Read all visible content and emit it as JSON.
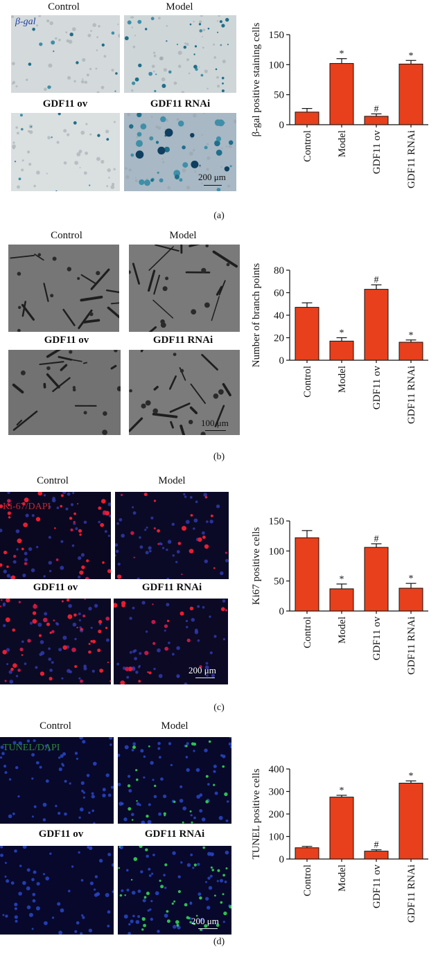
{
  "panels": [
    {
      "letter": "(a)",
      "image_labels": [
        "Control",
        "Model",
        "GDF11 ov",
        "GDF11 RNAi"
      ],
      "overlay": "β-gal",
      "scale": "200 μm"
    },
    {
      "letter": "(b)",
      "image_labels": [
        "Control",
        "Model",
        "GDF11 ov",
        "GDF11 RNAi"
      ],
      "overlay": "",
      "scale": "100 μm"
    },
    {
      "letter": "(c)",
      "image_labels": [
        "Control",
        "Model",
        "GDF11 ov",
        "GDF11 RNAi"
      ],
      "overlay": "Ki-67/DAPI",
      "scale": "200 μm"
    },
    {
      "letter": "(d)",
      "image_labels": [
        "Control",
        "Model",
        "GDF11 ov",
        "GDF11 RNAi"
      ],
      "overlay": "TUNEL/DAPI",
      "scale": "200 μm"
    }
  ],
  "colors": {
    "bar": "#e8401c",
    "axis": "#111111"
  },
  "chart_data": [
    {
      "type": "bar",
      "ylabel": "β-gal positive staining cells",
      "categories": [
        "Control",
        "Model",
        "GDF11 ov",
        "GDF11 RNAi"
      ],
      "values": [
        21,
        102,
        14,
        101
      ],
      "errors": [
        6,
        8,
        4,
        6
      ],
      "markers": [
        "",
        "*",
        "#",
        "*"
      ],
      "ylim": [
        0,
        150
      ],
      "yticks": [
        0,
        50,
        100,
        150
      ]
    },
    {
      "type": "bar",
      "ylabel": "Number of branch points",
      "categories": [
        "Control",
        "Model",
        "GDF11 ov",
        "GDF11 RNAi"
      ],
      "values": [
        47,
        17,
        63,
        16
      ],
      "errors": [
        4,
        3,
        4,
        2
      ],
      "markers": [
        "",
        "*",
        "#",
        "*"
      ],
      "ylim": [
        0,
        80
      ],
      "yticks": [
        0,
        20,
        40,
        60,
        80
      ]
    },
    {
      "type": "bar",
      "ylabel": "Ki67 positive cells",
      "categories": [
        "Control",
        "Model",
        "GDF11 ov",
        "GDF11 RNAi"
      ],
      "values": [
        122,
        37,
        106,
        38
      ],
      "errors": [
        12,
        8,
        6,
        8
      ],
      "markers": [
        "",
        "*",
        "#",
        "*"
      ],
      "ylim": [
        0,
        150
      ],
      "yticks": [
        0,
        50,
        100,
        150
      ]
    },
    {
      "type": "bar",
      "ylabel": "TUNEL positive cells",
      "categories": [
        "Control",
        "Model",
        "GDF11 ov",
        "GDF11 RNAi"
      ],
      "values": [
        50,
        275,
        35,
        337
      ],
      "errors": [
        6,
        8,
        6,
        10
      ],
      "markers": [
        "",
        "*",
        "#",
        "*"
      ],
      "ylim": [
        0,
        400
      ],
      "yticks": [
        0,
        100,
        200,
        300,
        400
      ]
    }
  ]
}
